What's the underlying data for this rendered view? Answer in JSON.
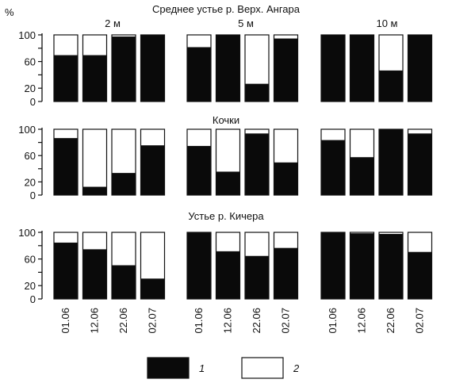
{
  "y_unit": "%",
  "legend": [
    {
      "key": "black",
      "label": "1",
      "color": "#0a0a0a"
    },
    {
      "key": "white",
      "label": "2",
      "color": "#ffffff"
    }
  ],
  "chart_data": {
    "type": "bar",
    "stacked": true,
    "ylim": [
      0,
      100
    ],
    "yticks": [
      0,
      20,
      40,
      60,
      80,
      100
    ],
    "ytick_labels": [
      "0",
      "20",
      "",
      "60",
      "",
      "100"
    ],
    "depths": [
      "2 м",
      "5 м",
      "10 м"
    ],
    "categories": [
      "01.06",
      "12.06",
      "22.06",
      "02.07"
    ],
    "panels": [
      {
        "title": "Среднее устье р. Верх. Ангара",
        "groups": [
          {
            "depth": "2 м",
            "series": [
              {
                "name": "1",
                "values": [
                  69,
                  69,
                  97,
                  99
                ]
              },
              {
                "name": "2",
                "values": [
                  31,
                  31,
                  3,
                  1
                ]
              }
            ]
          },
          {
            "depth": "5 м",
            "series": [
              {
                "name": "1",
                "values": [
                  81,
                  100,
                  26,
                  94
                ]
              },
              {
                "name": "2",
                "values": [
                  19,
                  0,
                  74,
                  6
                ]
              }
            ]
          },
          {
            "depth": "10 м",
            "series": [
              {
                "name": "1",
                "values": [
                  100,
                  100,
                  46,
                  100
                ]
              },
              {
                "name": "2",
                "values": [
                  0,
                  0,
                  54,
                  0
                ]
              }
            ]
          }
        ]
      },
      {
        "title": "Кочки",
        "groups": [
          {
            "depth": "2 м",
            "series": [
              {
                "name": "1",
                "values": [
                  86,
                  12,
                  33,
                  75
                ]
              },
              {
                "name": "2",
                "values": [
                  14,
                  88,
                  67,
                  25
                ]
              }
            ]
          },
          {
            "depth": "5 м",
            "series": [
              {
                "name": "1",
                "values": [
                  74,
                  35,
                  93,
                  49
                ]
              },
              {
                "name": "2",
                "values": [
                  26,
                  65,
                  7,
                  51
                ]
              }
            ]
          },
          {
            "depth": "10 м",
            "series": [
              {
                "name": "1",
                "values": [
                  83,
                  57,
                  100,
                  93
                ]
              },
              {
                "name": "2",
                "values": [
                  17,
                  43,
                  0,
                  7
                ]
              }
            ]
          }
        ]
      },
      {
        "title": "Устье р. Кичера",
        "groups": [
          {
            "depth": "2 м",
            "series": [
              {
                "name": "1",
                "values": [
                  84,
                  74,
                  50,
                  30
                ]
              },
              {
                "name": "2",
                "values": [
                  16,
                  26,
                  50,
                  70
                ]
              }
            ]
          },
          {
            "depth": "5 м",
            "series": [
              {
                "name": "1",
                "values": [
                  100,
                  71,
                  64,
                  76
                ]
              },
              {
                "name": "2",
                "values": [
                  0,
                  29,
                  36,
                  24
                ]
              }
            ]
          },
          {
            "depth": "10 м",
            "series": [
              {
                "name": "1",
                "values": [
                  100,
                  98,
                  97,
                  70
                ]
              },
              {
                "name": "2",
                "values": [
                  0,
                  2,
                  3,
                  30
                ]
              }
            ]
          }
        ]
      }
    ]
  }
}
